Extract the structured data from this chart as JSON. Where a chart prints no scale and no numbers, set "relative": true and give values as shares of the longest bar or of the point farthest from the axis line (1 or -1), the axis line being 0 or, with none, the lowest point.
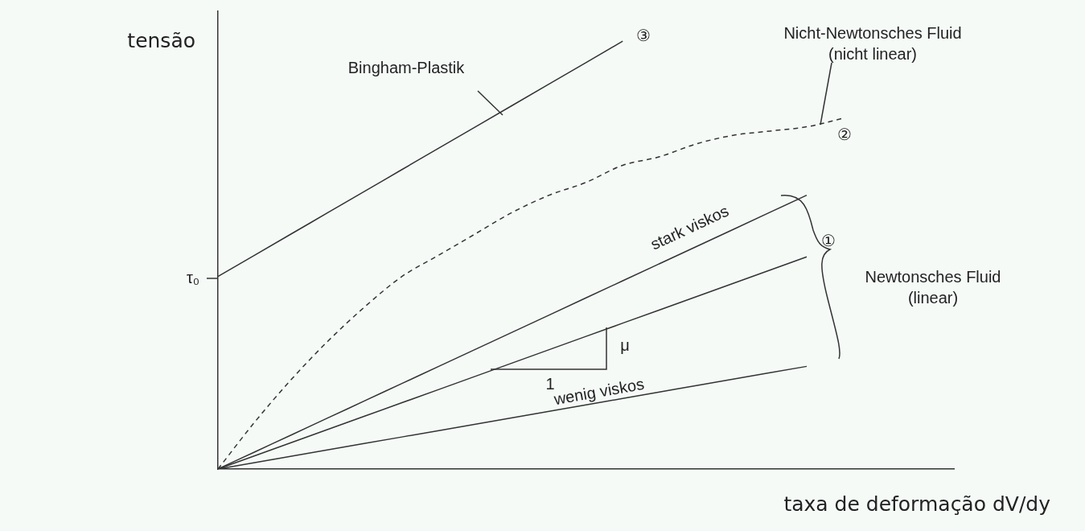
{
  "chart_data": {
    "type": "line",
    "relative": true,
    "xlabel": "taxa de deformação dV/dy",
    "ylabel": "tensão",
    "marker": "none",
    "categories": [
      null,
      null,
      null,
      null,
      null,
      null,
      null,
      null,
      null,
      null,
      null,
      null,
      null,
      null,
      null,
      null,
      null,
      null,
      null,
      null,
      null
    ],
    "series": [
      {
        "color": "#333333",
        "values": [
          0.45,
          0.5,
          0.55,
          0.6,
          0.65,
          0.7,
          0.75,
          0.8,
          0.85,
          0.9,
          0.95,
          1,
          null,
          null,
          null,
          null,
          null,
          null,
          null,
          null,
          null
        ]
      },
      {
        "color": "#333333",
        "line_style": "dashed",
        "values": [
          0,
          0.11,
          0.21,
          0.3,
          0.38,
          0.45,
          0.5,
          0.55,
          0.6,
          0.64,
          0.67,
          0.71,
          0.73,
          0.76,
          0.78,
          0.79,
          0.8,
          0.82,
          null,
          null,
          null
        ]
      },
      {
        "color": "#333333",
        "values": [
          0,
          0.04,
          0.08,
          0.12,
          0.16,
          0.2,
          0.24,
          0.28,
          0.32,
          0.36,
          0.4,
          0.44,
          0.48,
          0.52,
          0.56,
          0.6,
          0.64,
          null,
          null,
          null,
          null
        ]
      },
      {
        "color": "#333333",
        "values": [
          0,
          0.031,
          0.062,
          0.093,
          0.124,
          0.155,
          0.186,
          0.217,
          0.248,
          0.279,
          0.31,
          0.341,
          0.372,
          0.403,
          0.434,
          0.465,
          0.496,
          null,
          null,
          null,
          null
        ]
      },
      {
        "color": "#333333",
        "values": [
          0,
          0.015,
          0.03,
          0.045,
          0.06,
          0.075,
          0.09,
          0.105,
          0.12,
          0.135,
          0.15,
          0.165,
          0.18,
          0.195,
          0.21,
          0.225,
          0.24,
          null,
          null,
          null,
          null
        ]
      }
    ],
    "annotations": [
      "τ₀",
      "Bingham-Plastik",
      "③",
      "Nicht-Newtonsches Fluid\n(nicht linear)",
      "②",
      "stark viskos",
      "①",
      "Newtonsches Fluid\n(linear)",
      "μ",
      "1",
      "wenig viskos"
    ]
  }
}
